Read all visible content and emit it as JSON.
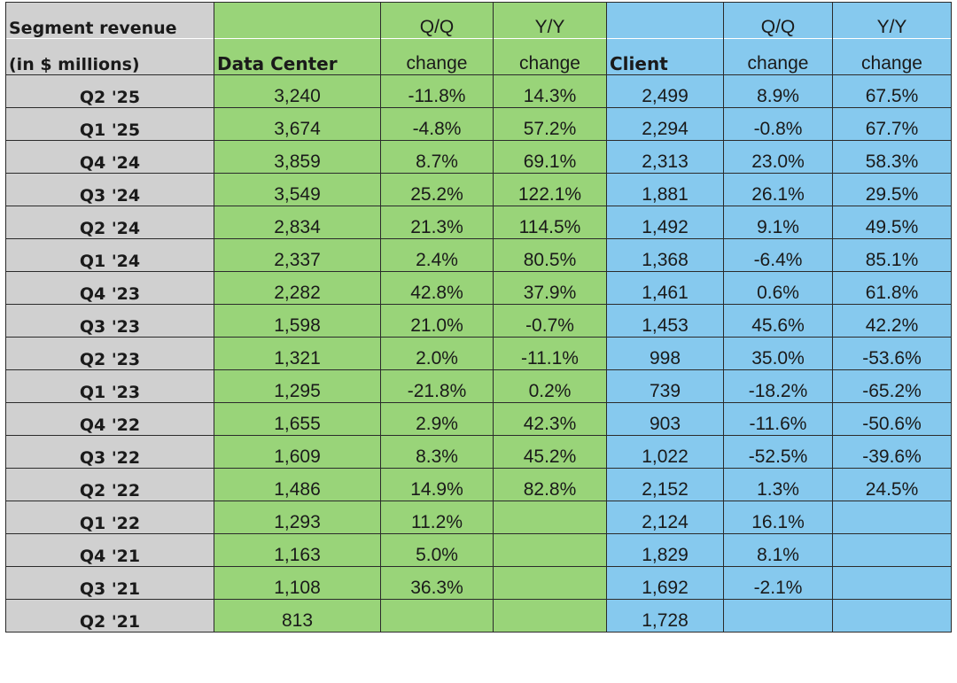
{
  "colors": {
    "label_bg": "#d0d0d0",
    "data_center_bg": "#99d479",
    "client_bg": "#86c9ee"
  },
  "chart_data": {
    "type": "table",
    "header": {
      "segment_line1": "Segment revenue",
      "segment_line2": "(in $ millions)",
      "data_center": "Data Center",
      "client": "Client",
      "qq_line1": "Q/Q",
      "yy_line1": "Y/Y",
      "change": "change"
    },
    "columns": [
      "Segment revenue (in $ millions)",
      "Data Center",
      "Q/Q change",
      "Y/Y change",
      "Client",
      "Q/Q change",
      "Y/Y change"
    ],
    "rows": [
      [
        "Q2 '25",
        "3,240",
        "-11.8%",
        "14.3%",
        "2,499",
        "8.9%",
        "67.5%"
      ],
      [
        "Q1 '25",
        "3,674",
        "-4.8%",
        "57.2%",
        "2,294",
        "-0.8%",
        "67.7%"
      ],
      [
        "Q4 '24",
        "3,859",
        "8.7%",
        "69.1%",
        "2,313",
        "23.0%",
        "58.3%"
      ],
      [
        "Q3 '24",
        "3,549",
        "25.2%",
        "122.1%",
        "1,881",
        "26.1%",
        "29.5%"
      ],
      [
        "Q2 '24",
        "2,834",
        "21.3%",
        "114.5%",
        "1,492",
        "9.1%",
        "49.5%"
      ],
      [
        "Q1 '24",
        "2,337",
        "2.4%",
        "80.5%",
        "1,368",
        "-6.4%",
        "85.1%"
      ],
      [
        "Q4 '23",
        "2,282",
        "42.8%",
        "37.9%",
        "1,461",
        "0.6%",
        "61.8%"
      ],
      [
        "Q3 '23",
        "1,598",
        "21.0%",
        "-0.7%",
        "1,453",
        "45.6%",
        "42.2%"
      ],
      [
        "Q2 '23",
        "1,321",
        "2.0%",
        "-11.1%",
        "998",
        "35.0%",
        "-53.6%"
      ],
      [
        "Q1 '23",
        "1,295",
        "-21.8%",
        "0.2%",
        "739",
        "-18.2%",
        "-65.2%"
      ],
      [
        "Q4 '22",
        "1,655",
        "2.9%",
        "42.3%",
        "903",
        "-11.6%",
        "-50.6%"
      ],
      [
        "Q3 '22",
        "1,609",
        "8.3%",
        "45.2%",
        "1,022",
        "-52.5%",
        "-39.6%"
      ],
      [
        "Q2 '22",
        "1,486",
        "14.9%",
        "82.8%",
        "2,152",
        "1.3%",
        "24.5%"
      ],
      [
        "Q1 '22",
        "1,293",
        "11.2%",
        "",
        "2,124",
        "16.1%",
        ""
      ],
      [
        "Q4 '21",
        "1,163",
        "5.0%",
        "",
        "1,829",
        "8.1%",
        ""
      ],
      [
        "Q3 '21",
        "1,108",
        "36.3%",
        "",
        "1,692",
        "-2.1%",
        ""
      ],
      [
        "Q2 '21",
        "813",
        "",
        "",
        "1,728",
        "",
        ""
      ]
    ]
  }
}
